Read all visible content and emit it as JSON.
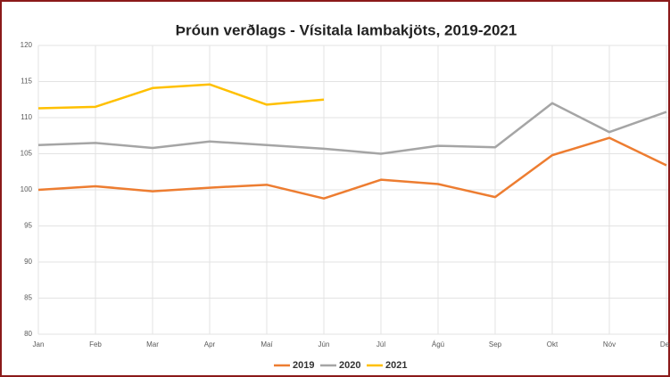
{
  "chart_data": {
    "type": "line",
    "title": "Þróun verðlags - Vísitala lambakjöts, 2019-2021",
    "categories": [
      "Jan",
      "Feb",
      "Mar",
      "Apr",
      "Maí",
      "Jún",
      "Júl",
      "Ágú",
      "Sep",
      "Okt",
      "Nóv",
      "Des"
    ],
    "series": [
      {
        "name": "2019",
        "color": "#ed7d31",
        "values": [
          100,
          100.5,
          99.8,
          100.3,
          100.7,
          98.8,
          101.4,
          100.8,
          99,
          104.8,
          107.2,
          103.4
        ]
      },
      {
        "name": "2020",
        "color": "#a5a5a5",
        "values": [
          106.2,
          106.5,
          105.8,
          106.7,
          106.2,
          105.7,
          105,
          106.1,
          105.9,
          112,
          108,
          110.8
        ]
      },
      {
        "name": "2021",
        "color": "#ffc000",
        "values": [
          111.3,
          111.5,
          114.1,
          114.6,
          111.8,
          112.5,
          null,
          null,
          null,
          null,
          null,
          null
        ]
      }
    ],
    "ylim": [
      80,
      120
    ],
    "yticks": [
      80,
      85,
      90,
      95,
      100,
      105,
      110,
      115,
      120
    ],
    "grid": true,
    "legend": "bottom"
  }
}
